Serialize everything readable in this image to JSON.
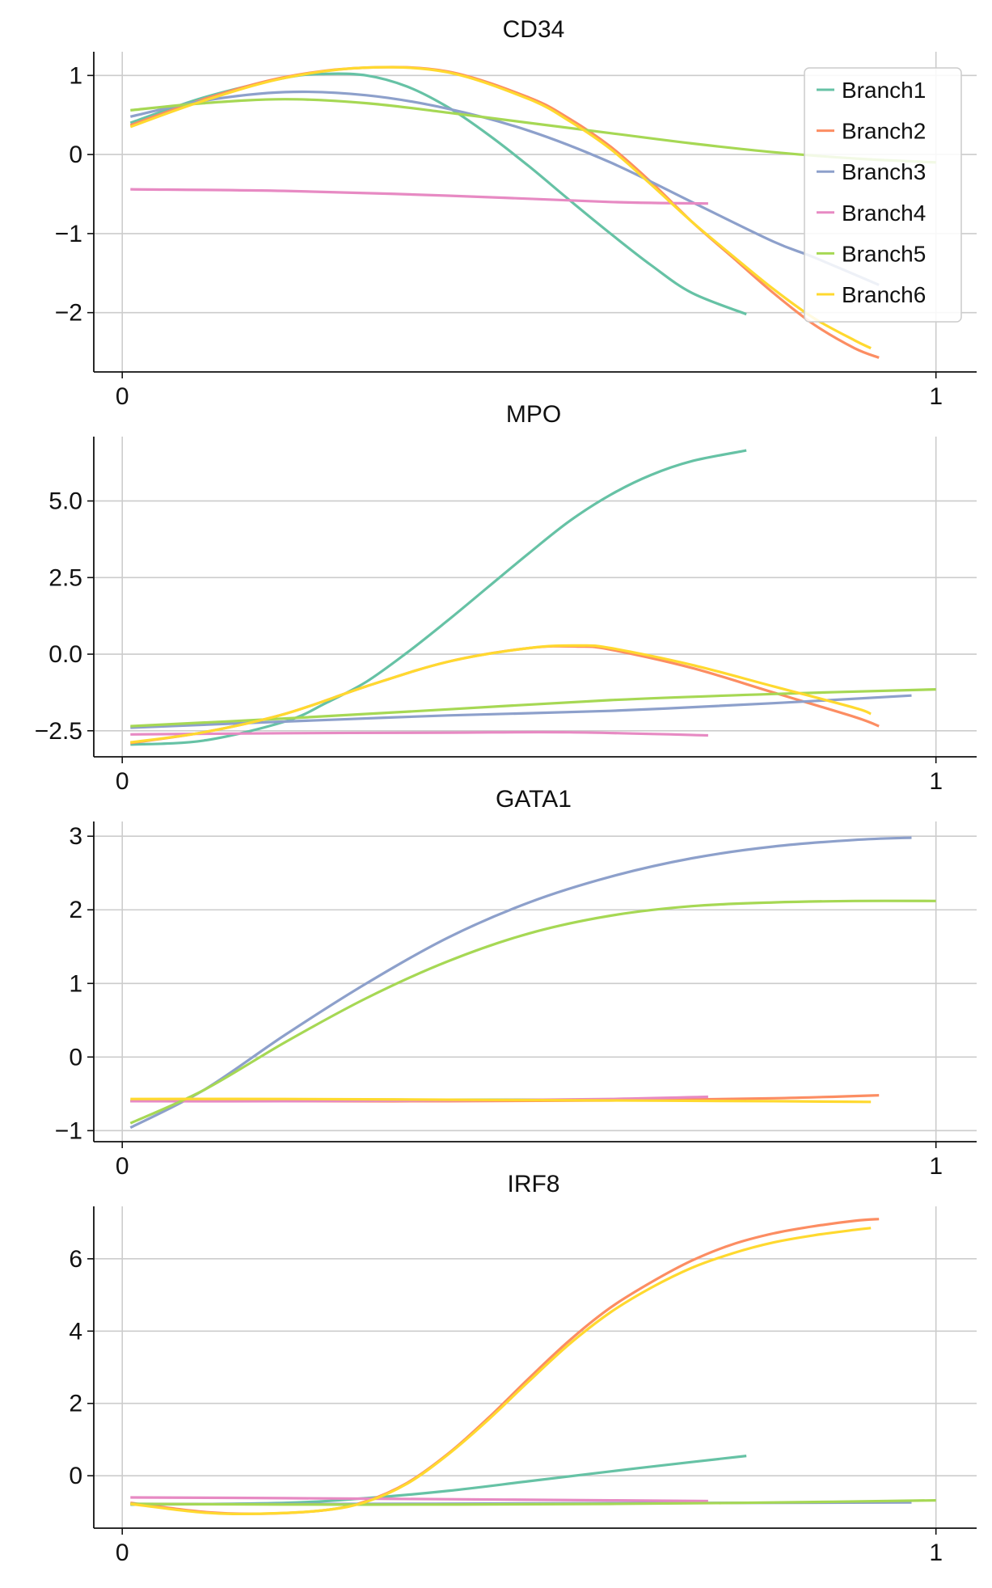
{
  "chart_data": [
    {
      "type": "line",
      "title": "CD34",
      "xlabel": "",
      "ylabel": "",
      "xlim": [
        -0.035,
        1.05
      ],
      "ylim": [
        -2.75,
        1.3
      ],
      "xticks": [
        0,
        1
      ],
      "xtick_labels": [
        "0",
        "1"
      ],
      "yticks": [
        1,
        0,
        -1,
        -2
      ],
      "ytick_labels": [
        "1",
        "0",
        "−1",
        "−2"
      ],
      "grid": true,
      "legend": "top-right",
      "series": [
        {
          "name": "Branch1",
          "color": "#66c2a5",
          "x": [
            0.01,
            0.1,
            0.2,
            0.25,
            0.3,
            0.35,
            0.4,
            0.45,
            0.5,
            0.55,
            0.6,
            0.65,
            0.7,
            0.767
          ],
          "y": [
            0.4,
            0.72,
            0.97,
            1.02,
            1.0,
            0.86,
            0.6,
            0.25,
            -0.15,
            -0.58,
            -1.0,
            -1.4,
            -1.75,
            -2.02
          ]
        },
        {
          "name": "Branch2",
          "color": "#fc8d62",
          "x": [
            0.01,
            0.1,
            0.2,
            0.3,
            0.4,
            0.5,
            0.55,
            0.6,
            0.65,
            0.7,
            0.75,
            0.8,
            0.85,
            0.9,
            0.93
          ],
          "y": [
            0.37,
            0.7,
            0.98,
            1.1,
            1.05,
            0.72,
            0.45,
            0.1,
            -0.35,
            -0.85,
            -1.3,
            -1.75,
            -2.15,
            -2.45,
            -2.57
          ]
        },
        {
          "name": "Branch3",
          "color": "#8da0cb",
          "x": [
            0.01,
            0.1,
            0.2,
            0.3,
            0.4,
            0.5,
            0.6,
            0.7,
            0.8,
            0.85,
            0.93
          ],
          "y": [
            0.48,
            0.68,
            0.79,
            0.75,
            0.58,
            0.3,
            -0.1,
            -0.6,
            -1.1,
            -1.3,
            -1.65
          ]
        },
        {
          "name": "Branch4",
          "color": "#e78ac3",
          "x": [
            0.01,
            0.2,
            0.4,
            0.6,
            0.72
          ],
          "y": [
            -0.44,
            -0.46,
            -0.52,
            -0.6,
            -0.62
          ]
        },
        {
          "name": "Branch5",
          "color": "#a6d854",
          "x": [
            0.01,
            0.1,
            0.2,
            0.3,
            0.4,
            0.5,
            0.6,
            0.7,
            0.8,
            0.9,
            1.0
          ],
          "y": [
            0.56,
            0.65,
            0.7,
            0.65,
            0.53,
            0.4,
            0.27,
            0.14,
            0.03,
            -0.05,
            -0.1
          ]
        },
        {
          "name": "Branch6",
          "color": "#ffd92f",
          "x": [
            0.01,
            0.1,
            0.2,
            0.3,
            0.4,
            0.5,
            0.55,
            0.6,
            0.65,
            0.7,
            0.75,
            0.8,
            0.85,
            0.9,
            0.92
          ],
          "y": [
            0.35,
            0.68,
            0.97,
            1.1,
            1.04,
            0.7,
            0.42,
            0.07,
            -0.38,
            -0.85,
            -1.28,
            -1.7,
            -2.07,
            -2.35,
            -2.45
          ]
        }
      ]
    },
    {
      "type": "line",
      "title": "MPO",
      "xlabel": "",
      "ylabel": "",
      "xlim": [
        -0.035,
        1.05
      ],
      "ylim": [
        -3.35,
        7.1
      ],
      "xticks": [
        0,
        1
      ],
      "xtick_labels": [
        "0",
        "1"
      ],
      "yticks": [
        5.0,
        2.5,
        0.0,
        -2.5
      ],
      "ytick_labels": [
        "5.0",
        "2.5",
        "0.0",
        "−2.5"
      ],
      "grid": true,
      "series": [
        {
          "name": "Branch1",
          "color": "#66c2a5",
          "x": [
            0.01,
            0.1,
            0.2,
            0.25,
            0.3,
            0.35,
            0.4,
            0.45,
            0.5,
            0.55,
            0.6,
            0.65,
            0.7,
            0.767
          ],
          "y": [
            -2.95,
            -2.82,
            -2.2,
            -1.6,
            -0.9,
            0.05,
            1.1,
            2.2,
            3.3,
            4.35,
            5.2,
            5.85,
            6.3,
            6.65
          ]
        },
        {
          "name": "Branch2",
          "color": "#fc8d62",
          "x": [
            0.01,
            0.1,
            0.2,
            0.3,
            0.4,
            0.5,
            0.56,
            0.6,
            0.7,
            0.8,
            0.9,
            0.93
          ],
          "y": [
            -2.9,
            -2.55,
            -1.95,
            -1.05,
            -0.25,
            0.2,
            0.25,
            0.15,
            -0.45,
            -1.25,
            -2.05,
            -2.35
          ]
        },
        {
          "name": "Branch3",
          "color": "#8da0cb",
          "x": [
            0.01,
            0.2,
            0.4,
            0.6,
            0.8,
            0.97
          ],
          "y": [
            -2.4,
            -2.2,
            -2.0,
            -1.85,
            -1.6,
            -1.35
          ]
        },
        {
          "name": "Branch4",
          "color": "#e78ac3",
          "x": [
            0.01,
            0.2,
            0.4,
            0.55,
            0.72
          ],
          "y": [
            -2.62,
            -2.58,
            -2.56,
            -2.55,
            -2.65
          ]
        },
        {
          "name": "Branch5",
          "color": "#a6d854",
          "x": [
            0.01,
            0.2,
            0.4,
            0.6,
            0.8,
            1.0
          ],
          "y": [
            -2.35,
            -2.1,
            -1.8,
            -1.5,
            -1.3,
            -1.15
          ]
        },
        {
          "name": "Branch6",
          "color": "#ffd92f",
          "x": [
            0.01,
            0.1,
            0.2,
            0.3,
            0.4,
            0.5,
            0.56,
            0.6,
            0.7,
            0.8,
            0.9,
            0.92
          ],
          "y": [
            -2.88,
            -2.55,
            -1.95,
            -1.05,
            -0.25,
            0.2,
            0.28,
            0.2,
            -0.35,
            -1.05,
            -1.75,
            -1.95
          ]
        }
      ]
    },
    {
      "type": "line",
      "title": "GATA1",
      "xlabel": "",
      "ylabel": "",
      "xlim": [
        -0.035,
        1.05
      ],
      "ylim": [
        -1.15,
        3.2
      ],
      "xticks": [
        0,
        1
      ],
      "xtick_labels": [
        "0",
        "1"
      ],
      "yticks": [
        3,
        2,
        1,
        0,
        -1
      ],
      "ytick_labels": [
        "3",
        "2",
        "1",
        "0",
        "−1"
      ],
      "grid": true,
      "series": [
        {
          "name": "Branch1",
          "color": "#66c2a5",
          "x": [
            0.01,
            0.2,
            0.4,
            0.6,
            0.767
          ],
          "y": [
            -0.6,
            -0.58,
            -0.58,
            -0.58,
            -0.59
          ]
        },
        {
          "name": "Branch2",
          "color": "#fc8d62",
          "x": [
            0.01,
            0.2,
            0.4,
            0.6,
            0.8,
            0.93
          ],
          "y": [
            -0.6,
            -0.6,
            -0.6,
            -0.59,
            -0.56,
            -0.52
          ]
        },
        {
          "name": "Branch3",
          "color": "#8da0cb",
          "x": [
            0.01,
            0.1,
            0.2,
            0.3,
            0.4,
            0.5,
            0.6,
            0.7,
            0.8,
            0.9,
            0.97
          ],
          "y": [
            -0.96,
            -0.45,
            0.3,
            1.0,
            1.62,
            2.1,
            2.45,
            2.7,
            2.86,
            2.95,
            2.98
          ]
        },
        {
          "name": "Branch4",
          "color": "#e78ac3",
          "x": [
            0.01,
            0.2,
            0.4,
            0.6,
            0.72
          ],
          "y": [
            -0.6,
            -0.6,
            -0.59,
            -0.57,
            -0.54
          ]
        },
        {
          "name": "Branch5",
          "color": "#a6d854",
          "x": [
            0.01,
            0.1,
            0.2,
            0.3,
            0.4,
            0.5,
            0.6,
            0.7,
            0.8,
            0.9,
            1.0
          ],
          "y": [
            -0.9,
            -0.45,
            0.2,
            0.8,
            1.3,
            1.68,
            1.92,
            2.05,
            2.1,
            2.12,
            2.12
          ]
        },
        {
          "name": "Branch6",
          "color": "#ffd92f",
          "x": [
            0.01,
            0.2,
            0.4,
            0.6,
            0.8,
            0.92
          ],
          "y": [
            -0.57,
            -0.57,
            -0.58,
            -0.59,
            -0.6,
            -0.61
          ]
        }
      ]
    },
    {
      "type": "line",
      "title": "IRF8",
      "xlabel": "",
      "ylabel": "",
      "xlim": [
        -0.035,
        1.05
      ],
      "ylim": [
        -1.45,
        7.45
      ],
      "xticks": [
        0,
        1
      ],
      "xtick_labels": [
        "0",
        "1"
      ],
      "yticks": [
        6,
        4,
        2,
        0
      ],
      "ytick_labels": [
        "6",
        "4",
        "2",
        "0"
      ],
      "grid": true,
      "series": [
        {
          "name": "Branch1",
          "color": "#66c2a5",
          "x": [
            0.01,
            0.2,
            0.3,
            0.4,
            0.5,
            0.6,
            0.7,
            0.767
          ],
          "y": [
            -0.8,
            -0.75,
            -0.62,
            -0.42,
            -0.15,
            0.12,
            0.38,
            0.55
          ]
        },
        {
          "name": "Branch2",
          "color": "#fc8d62",
          "x": [
            0.01,
            0.1,
            0.17,
            0.25,
            0.3,
            0.35,
            0.4,
            0.45,
            0.5,
            0.55,
            0.6,
            0.65,
            0.7,
            0.75,
            0.8,
            0.85,
            0.9,
            0.93
          ],
          "y": [
            -0.75,
            -1.0,
            -1.05,
            -0.95,
            -0.7,
            -0.2,
            0.6,
            1.6,
            2.7,
            3.75,
            4.65,
            5.35,
            5.95,
            6.4,
            6.7,
            6.9,
            7.05,
            7.1
          ]
        },
        {
          "name": "Branch3",
          "color": "#8da0cb",
          "x": [
            0.01,
            0.3,
            0.6,
            0.97
          ],
          "y": [
            -0.78,
            -0.78,
            -0.76,
            -0.74
          ]
        },
        {
          "name": "Branch4",
          "color": "#e78ac3",
          "x": [
            0.01,
            0.2,
            0.4,
            0.6,
            0.72
          ],
          "y": [
            -0.6,
            -0.62,
            -0.65,
            -0.68,
            -0.7
          ]
        },
        {
          "name": "Branch5",
          "color": "#a6d854",
          "x": [
            0.01,
            0.3,
            0.6,
            0.8,
            1.0
          ],
          "y": [
            -0.78,
            -0.8,
            -0.78,
            -0.74,
            -0.68
          ]
        },
        {
          "name": "Branch6",
          "color": "#ffd92f",
          "x": [
            0.01,
            0.1,
            0.17,
            0.25,
            0.3,
            0.35,
            0.4,
            0.45,
            0.5,
            0.55,
            0.6,
            0.65,
            0.7,
            0.75,
            0.8,
            0.85,
            0.9,
            0.92
          ],
          "y": [
            -0.78,
            -1.02,
            -1.05,
            -0.95,
            -0.72,
            -0.22,
            0.58,
            1.55,
            2.62,
            3.65,
            4.52,
            5.2,
            5.75,
            6.15,
            6.45,
            6.65,
            6.8,
            6.85
          ]
        }
      ]
    }
  ]
}
